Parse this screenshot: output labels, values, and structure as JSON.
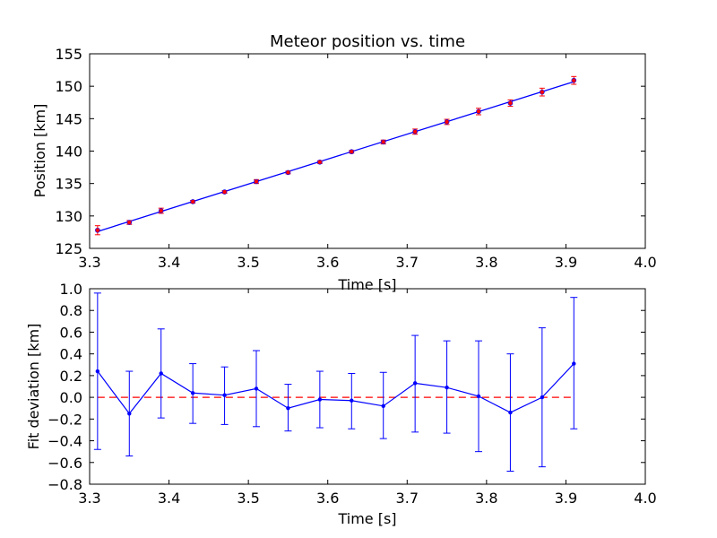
{
  "chart_data": [
    {
      "type": "scatter",
      "title": "Meteor position vs. time",
      "xlabel": "Time [s]",
      "ylabel": "Position [km]",
      "xlim": [
        3.3,
        4.0
      ],
      "ylim": [
        125,
        155
      ],
      "xticks": [
        "3.3",
        "3.4",
        "3.5",
        "3.6",
        "3.7",
        "3.8",
        "3.9",
        "4.0"
      ],
      "yticks": [
        "125",
        "130",
        "135",
        "140",
        "145",
        "150",
        "155"
      ],
      "grid": false,
      "colors": {
        "points": "#ff0000",
        "errorbars": "#ff0000",
        "fit_line": "#0000ff"
      },
      "x": [
        3.31,
        3.35,
        3.39,
        3.43,
        3.47,
        3.51,
        3.55,
        3.59,
        3.63,
        3.67,
        3.71,
        3.75,
        3.79,
        3.83,
        3.87,
        3.91
      ],
      "y": [
        127.8,
        129.0,
        130.8,
        132.2,
        133.7,
        135.3,
        136.7,
        138.3,
        139.9,
        141.4,
        143.0,
        144.5,
        146.1,
        147.4,
        149.1,
        150.9
      ],
      "yerr": [
        0.7,
        0.3,
        0.4,
        0.2,
        0.2,
        0.3,
        0.2,
        0.2,
        0.2,
        0.3,
        0.4,
        0.4,
        0.5,
        0.5,
        0.6,
        0.6
      ],
      "fit_line": {
        "x": [
          3.31,
          3.91
        ],
        "y": [
          127.6,
          150.7
        ]
      }
    },
    {
      "type": "line",
      "title": "",
      "xlabel": "Time [s]",
      "ylabel": "Fit deviation [km]",
      "xlim": [
        3.3,
        4.0
      ],
      "ylim": [
        -0.8,
        1.0
      ],
      "xticks": [
        "3.3",
        "3.4",
        "3.5",
        "3.6",
        "3.7",
        "3.8",
        "3.9",
        "4.0"
      ],
      "yticks": [
        "−0.8",
        "−0.6",
        "−0.4",
        "−0.2",
        "0.0",
        "0.2",
        "0.4",
        "0.6",
        "0.8",
        "1.0"
      ],
      "grid": false,
      "colors": {
        "series": "#0000ff",
        "zero_line": "#ff0000"
      },
      "x": [
        3.31,
        3.35,
        3.39,
        3.43,
        3.47,
        3.51,
        3.55,
        3.59,
        3.63,
        3.67,
        3.71,
        3.75,
        3.79,
        3.83,
        3.87,
        3.91
      ],
      "y": [
        0.24,
        -0.15,
        0.22,
        0.04,
        0.02,
        0.08,
        -0.1,
        -0.02,
        -0.03,
        -0.08,
        0.13,
        0.09,
        0.01,
        -0.14,
        0.0,
        0.31
      ],
      "ylow": [
        -0.48,
        -0.54,
        -0.19,
        -0.24,
        -0.25,
        -0.27,
        -0.31,
        -0.28,
        -0.29,
        -0.38,
        -0.32,
        -0.33,
        -0.5,
        -0.68,
        -0.64,
        -0.29
      ],
      "yhigh": [
        0.96,
        0.24,
        0.63,
        0.31,
        0.28,
        0.43,
        0.12,
        0.24,
        0.22,
        0.23,
        0.57,
        0.52,
        0.52,
        0.4,
        0.64,
        0.92
      ],
      "zero_line": {
        "x": [
          3.31,
          3.91
        ],
        "y": [
          0.0,
          0.0
        ]
      }
    }
  ]
}
